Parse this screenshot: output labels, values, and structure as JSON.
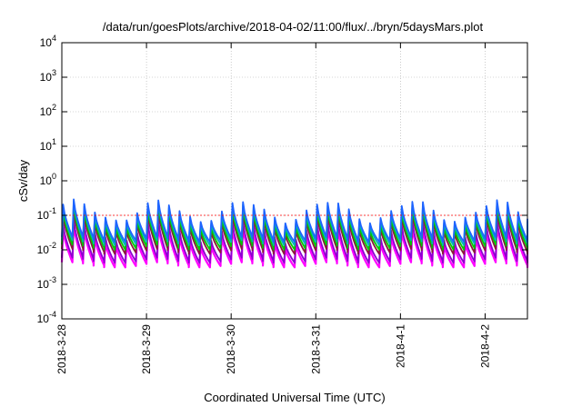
{
  "chart_data": {
    "type": "line",
    "title": "/data/run/goesPlots/archive/2018-04-02/11:00/flux/../bryn/5daysMars.plot",
    "xlabel": "Coordinated Universal Time (UTC)",
    "ylabel": "cSv/day",
    "yscale": "log",
    "ylim": [
      0.0001,
      10000
    ],
    "xlim": [
      "2018-03-28",
      "2018-04-02 12:00"
    ],
    "grid": true,
    "y_ticks": [
      {
        "value": 0.0001,
        "mantissa": "10",
        "exponent": "-4"
      },
      {
        "value": 0.001,
        "mantissa": "10",
        "exponent": "-3"
      },
      {
        "value": 0.01,
        "mantissa": "10",
        "exponent": "-2"
      },
      {
        "value": 0.1,
        "mantissa": "10",
        "exponent": "-1"
      },
      {
        "value": 1,
        "mantissa": "10",
        "exponent": "0"
      },
      {
        "value": 10,
        "mantissa": "10",
        "exponent": "1"
      },
      {
        "value": 100,
        "mantissa": "10",
        "exponent": "2"
      },
      {
        "value": 1000,
        "mantissa": "10",
        "exponent": "3"
      },
      {
        "value": 10000,
        "mantissa": "10",
        "exponent": "4"
      }
    ],
    "x_ticks": [
      {
        "day": 0,
        "label": "2018-3-28"
      },
      {
        "day": 1,
        "label": "2018-3-29"
      },
      {
        "day": 2,
        "label": "2018-3-30"
      },
      {
        "day": 3,
        "label": "2018-3-31"
      },
      {
        "day": 4,
        "label": "2018-4-1"
      },
      {
        "day": 5,
        "label": "2018-4-2"
      }
    ],
    "reference_line": {
      "value": 0.1,
      "color": "#ff0000"
    },
    "series_pattern": {
      "cycle_hours": 3,
      "shape": "sawtooth (sharp rise, decay)",
      "band_peaks": [
        0.13,
        0.11,
        0.085,
        0.065,
        0.035,
        0.025
      ],
      "band_troughs": [
        0.02,
        0.016,
        0.012,
        0.009,
        0.005,
        0.0037
      ]
    },
    "series": [
      {
        "color": "#1e64ff"
      },
      {
        "color": "#00b4b4"
      },
      {
        "color": "#00c800"
      },
      {
        "color": "#8b1a3a"
      },
      {
        "color": "#8c00d0"
      },
      {
        "color": "#ff00ff"
      }
    ]
  }
}
